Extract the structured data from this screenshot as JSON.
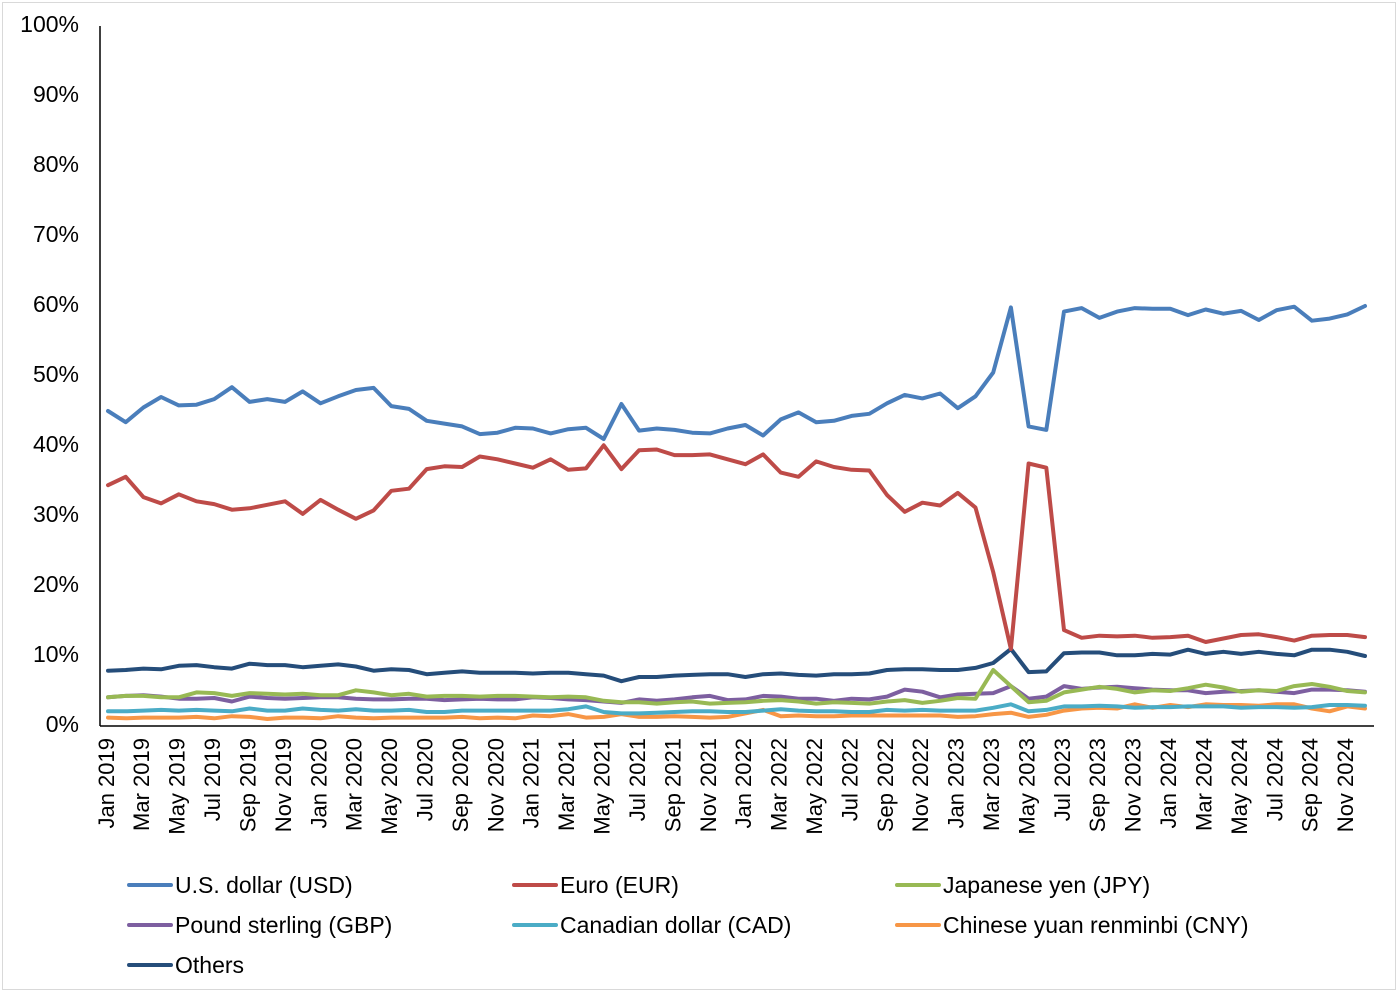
{
  "chart_data": {
    "type": "line",
    "title": "",
    "xlabel": "",
    "ylabel": "",
    "ylim": [
      0,
      100
    ],
    "yticks": [
      "0%",
      "10%",
      "20%",
      "30%",
      "40%",
      "50%",
      "60%",
      "70%",
      "80%",
      "90%",
      "100%"
    ],
    "grid": false,
    "legend_position": "bottom",
    "x": [
      "Jan 2019",
      "Feb 2019",
      "Mar 2019",
      "Apr 2019",
      "May 2019",
      "Jun 2019",
      "Jul 2019",
      "Aug 2019",
      "Sep 2019",
      "Oct 2019",
      "Nov 2019",
      "Dec 2019",
      "Jan 2020",
      "Feb 2020",
      "Mar 2020",
      "Apr 2020",
      "May 2020",
      "Jun 2020",
      "Jul 2020",
      "Aug 2020",
      "Sep 2020",
      "Oct 2020",
      "Nov 2020",
      "Dec 2020",
      "Jan 2021",
      "Feb 2021",
      "Mar 2021",
      "Apr 2021",
      "May 2021",
      "Jun 2021",
      "Jul 2021",
      "Aug 2021",
      "Sep 2021",
      "Oct 2021",
      "Nov 2021",
      "Dec 2021",
      "Jan 2022",
      "Feb 2022",
      "Mar 2022",
      "Apr 2022",
      "May 2022",
      "Jun 2022",
      "Jul 2022",
      "Aug 2022",
      "Sep 2022",
      "Oct 2022",
      "Nov 2022",
      "Dec 2022",
      "Jan 2023",
      "Feb 2023",
      "Mar 2023",
      "Apr 2023",
      "May 2023",
      "Jun 2023",
      "Jul 2023",
      "Aug 2023",
      "Sep 2023",
      "Oct 2023",
      "Nov 2023",
      "Dec 2023",
      "Jan 2024",
      "Feb 2024",
      "Mar 2024",
      "Apr 2024",
      "May 2024",
      "Jun 2024",
      "Jul 2024",
      "Aug 2024",
      "Sep 2024",
      "Oct 2024",
      "Nov 2024",
      "Dec 2024"
    ],
    "xticklabels": [
      "Jan 2019",
      "Mar 2019",
      "May 2019",
      "Jul 2019",
      "Sep 2019",
      "Nov 2019",
      "Jan 2020",
      "Mar 2020",
      "May 2020",
      "Jul 2020",
      "Sep 2020",
      "Nov 2020",
      "Jan 2021",
      "Mar 2021",
      "May 2021",
      "Jul 2021",
      "Sep 2021",
      "Nov 2021",
      "Jan 2022",
      "Mar 2022",
      "May 2022",
      "Jul 2022",
      "Sep 2022",
      "Nov 2022",
      "Jan 2023",
      "Mar 2023",
      "May 2023",
      "Jul 2023",
      "Sep 2023",
      "Nov 2023",
      "Jan 2024",
      "Mar 2024",
      "May 2024",
      "Jul 2024",
      "Sep 2024",
      "Nov 2024"
    ],
    "series": [
      {
        "name": "U.S. dollar (USD)",
        "color": "#4a7ebb",
        "values": [
          45.0,
          43.4,
          45.5,
          47.0,
          45.8,
          45.9,
          46.7,
          48.4,
          46.3,
          46.7,
          46.3,
          47.8,
          46.1,
          47.1,
          48.0,
          48.3,
          45.7,
          45.3,
          43.6,
          43.2,
          42.8,
          41.7,
          41.9,
          42.6,
          42.5,
          41.8,
          42.4,
          42.6,
          41.0,
          46.0,
          42.2,
          42.5,
          42.3,
          41.9,
          41.8,
          42.5,
          43.0,
          41.5,
          43.8,
          44.8,
          43.4,
          43.6,
          44.3,
          44.6,
          46.1,
          47.3,
          46.8,
          47.5,
          45.4,
          47.1,
          50.5,
          59.8,
          42.8,
          42.3,
          59.2,
          59.7,
          58.3,
          59.2,
          59.7,
          59.6,
          59.6,
          58.7,
          59.5,
          58.9,
          59.3,
          58.0,
          59.4,
          59.9,
          57.9,
          58.2,
          58.8,
          60.0
        ]
      },
      {
        "name": "Euro (EUR)",
        "color": "#be4b48",
        "values": [
          34.4,
          35.6,
          32.7,
          31.8,
          33.1,
          32.1,
          31.7,
          30.9,
          31.1,
          31.6,
          32.1,
          30.3,
          32.3,
          30.9,
          29.6,
          30.8,
          33.6,
          33.9,
          36.7,
          37.1,
          37.0,
          38.5,
          38.1,
          37.5,
          36.9,
          38.1,
          36.6,
          36.8,
          40.1,
          36.7,
          39.4,
          39.5,
          38.7,
          38.7,
          38.8,
          38.1,
          37.4,
          38.8,
          36.2,
          35.6,
          37.8,
          37.0,
          36.6,
          36.5,
          33.0,
          30.6,
          31.9,
          31.5,
          33.3,
          31.2,
          22.0,
          11.0,
          37.5,
          36.9,
          13.7,
          12.6,
          12.9,
          12.8,
          12.9,
          12.6,
          12.7,
          12.9,
          12.0,
          12.5,
          13.0,
          13.1,
          12.7,
          12.2,
          12.9,
          13.0,
          13.0,
          12.7
        ]
      },
      {
        "name": "Japanese yen (JPY)",
        "color": "#98b954",
        "values": [
          4.1,
          4.3,
          4.3,
          4.1,
          4.1,
          4.8,
          4.7,
          4.3,
          4.7,
          4.6,
          4.5,
          4.6,
          4.4,
          4.4,
          5.1,
          4.8,
          4.4,
          4.6,
          4.2,
          4.3,
          4.3,
          4.2,
          4.3,
          4.3,
          4.2,
          4.1,
          4.2,
          4.1,
          3.6,
          3.4,
          3.4,
          3.2,
          3.4,
          3.5,
          3.2,
          3.3,
          3.4,
          3.6,
          3.7,
          3.5,
          3.2,
          3.4,
          3.3,
          3.2,
          3.5,
          3.7,
          3.3,
          3.6,
          4.0,
          3.9,
          8.0,
          5.7,
          3.4,
          3.6,
          4.8,
          5.2,
          5.6,
          5.3,
          4.8,
          5.1,
          5.0,
          5.4,
          5.9,
          5.5,
          4.9,
          5.1,
          5.0,
          5.7,
          6.0,
          5.6,
          5.0,
          4.8
        ]
      },
      {
        "name": "Pound sterling (GBP)",
        "color": "#7d5fa0",
        "values": [
          4.1,
          4.3,
          4.4,
          4.2,
          3.9,
          3.9,
          4.0,
          3.5,
          4.2,
          4.0,
          3.9,
          4.0,
          4.1,
          4.1,
          3.9,
          3.8,
          3.8,
          3.9,
          3.9,
          3.7,
          3.8,
          3.9,
          3.8,
          3.8,
          4.1,
          4.0,
          3.8,
          3.7,
          3.5,
          3.3,
          3.8,
          3.6,
          3.8,
          4.1,
          4.3,
          3.7,
          3.8,
          4.3,
          4.2,
          3.9,
          3.9,
          3.6,
          3.9,
          3.8,
          4.2,
          5.2,
          4.9,
          4.1,
          4.5,
          4.6,
          4.7,
          5.7,
          3.9,
          4.2,
          5.7,
          5.3,
          5.5,
          5.6,
          5.4,
          5.2,
          5.1,
          5.1,
          4.7,
          4.9,
          5.0,
          5.1,
          4.9,
          4.7,
          5.2,
          5.2,
          5.1,
          4.9
        ]
      },
      {
        "name": "Canadian dollar (CAD)",
        "color": "#4bacc6",
        "values": [
          2.1,
          2.1,
          2.2,
          2.3,
          2.2,
          2.3,
          2.2,
          2.1,
          2.5,
          2.2,
          2.2,
          2.5,
          2.3,
          2.2,
          2.4,
          2.2,
          2.2,
          2.3,
          2.0,
          2.0,
          2.2,
          2.2,
          2.2,
          2.2,
          2.2,
          2.2,
          2.4,
          2.8,
          2.0,
          1.8,
          1.8,
          1.9,
          2.0,
          2.1,
          2.1,
          2.0,
          2.0,
          2.2,
          2.4,
          2.2,
          2.1,
          2.1,
          2.0,
          2.0,
          2.3,
          2.2,
          2.3,
          2.2,
          2.2,
          2.2,
          2.6,
          3.1,
          2.1,
          2.3,
          2.8,
          2.8,
          2.9,
          2.8,
          2.6,
          2.7,
          2.7,
          2.8,
          2.8,
          2.8,
          2.6,
          2.7,
          2.7,
          2.6,
          2.7,
          3.0,
          3.0,
          2.9
        ]
      },
      {
        "name": "Chinese yuan renminbi (CNY)",
        "color": "#f79646",
        "values": [
          1.2,
          1.1,
          1.2,
          1.2,
          1.2,
          1.3,
          1.1,
          1.4,
          1.3,
          1.0,
          1.2,
          1.2,
          1.1,
          1.4,
          1.2,
          1.1,
          1.2,
          1.2,
          1.2,
          1.2,
          1.3,
          1.1,
          1.2,
          1.1,
          1.5,
          1.4,
          1.7,
          1.2,
          1.3,
          1.7,
          1.3,
          1.3,
          1.4,
          1.3,
          1.2,
          1.3,
          1.8,
          2.3,
          1.4,
          1.5,
          1.4,
          1.4,
          1.5,
          1.5,
          1.5,
          1.5,
          1.5,
          1.5,
          1.3,
          1.4,
          1.7,
          1.9,
          1.3,
          1.6,
          2.2,
          2.5,
          2.6,
          2.5,
          3.1,
          2.6,
          3.0,
          2.7,
          3.1,
          3.0,
          3.0,
          2.9,
          3.1,
          3.1,
          2.5,
          2.1,
          2.8,
          2.5
        ]
      },
      {
        "name": "Others",
        "color": "#254d7a",
        "values": [
          7.9,
          8.0,
          8.2,
          8.1,
          8.6,
          8.7,
          8.4,
          8.2,
          8.9,
          8.7,
          8.7,
          8.4,
          8.6,
          8.8,
          8.5,
          7.9,
          8.1,
          8.0,
          7.4,
          7.6,
          7.8,
          7.6,
          7.6,
          7.6,
          7.5,
          7.6,
          7.6,
          7.4,
          7.2,
          6.4,
          7.0,
          7.0,
          7.2,
          7.3,
          7.4,
          7.4,
          7.0,
          7.4,
          7.5,
          7.3,
          7.2,
          7.4,
          7.4,
          7.5,
          8.0,
          8.1,
          8.1,
          8.0,
          8.0,
          8.3,
          9.0,
          11.0,
          7.7,
          7.8,
          10.4,
          10.5,
          10.5,
          10.1,
          10.1,
          10.3,
          10.2,
          10.9,
          10.3,
          10.6,
          10.3,
          10.6,
          10.3,
          10.1,
          10.9,
          10.9,
          10.6,
          10.0
        ]
      }
    ]
  }
}
